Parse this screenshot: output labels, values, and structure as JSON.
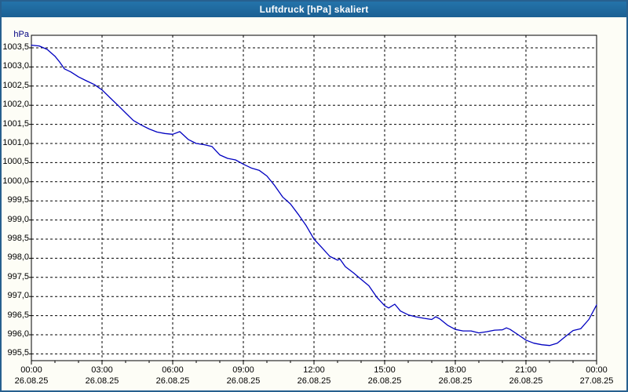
{
  "window": {
    "title": "Luftdruck [hPa] skaliert",
    "colors": {
      "titlebar": "#1d6394",
      "titlebar_text": "#ffffff",
      "frame": "#27608f",
      "background": "#fdfdf6",
      "plot_background": "#ffffff",
      "plot_border": "#000000",
      "gridline": "#000000",
      "line": "#0000c0",
      "axis_text": "#000000",
      "unit_text": "#000080"
    }
  },
  "chart_data": {
    "type": "line",
    "title": "Luftdruck [hPa] skaliert",
    "xlabel": "",
    "ylabel": "hPa",
    "grid": "dashed",
    "legend": "none",
    "ylim": [
      995.3,
      1003.83
    ],
    "xlim_hours": [
      0,
      24
    ],
    "y_ticks": [
      {
        "value": 1003.5,
        "label": "1003,5"
      },
      {
        "value": 1003.0,
        "label": "1003,0"
      },
      {
        "value": 1002.5,
        "label": "1002,5"
      },
      {
        "value": 1002.0,
        "label": "1002,0"
      },
      {
        "value": 1001.5,
        "label": "1001,5"
      },
      {
        "value": 1001.0,
        "label": "1001,0"
      },
      {
        "value": 1000.5,
        "label": "1000,5"
      },
      {
        "value": 1000.0,
        "label": "1000,0"
      },
      {
        "value": 999.5,
        "label": "999,5"
      },
      {
        "value": 999.0,
        "label": "999,0"
      },
      {
        "value": 998.5,
        "label": "998,5"
      },
      {
        "value": 998.0,
        "label": "998,0"
      },
      {
        "value": 997.5,
        "label": "997,5"
      },
      {
        "value": 997.0,
        "label": "997,0"
      },
      {
        "value": 996.5,
        "label": "996,5"
      },
      {
        "value": 996.0,
        "label": "996,0"
      },
      {
        "value": 995.5,
        "label": "995,5"
      }
    ],
    "x_major_ticks": [
      {
        "hour": 0,
        "time": "00:00",
        "date": "26.08.25"
      },
      {
        "hour": 3,
        "time": "03:00",
        "date": "26.08.25"
      },
      {
        "hour": 6,
        "time": "06:00",
        "date": "26.08.25"
      },
      {
        "hour": 9,
        "time": "09:00",
        "date": "26.08.25"
      },
      {
        "hour": 12,
        "time": "12:00",
        "date": "26.08.25"
      },
      {
        "hour": 15,
        "time": "15:00",
        "date": "26.08.25"
      },
      {
        "hour": 18,
        "time": "18:00",
        "date": "26.08.25"
      },
      {
        "hour": 21,
        "time": "21:00",
        "date": "26.08.25"
      },
      {
        "hour": 24,
        "time": "00:00",
        "date": "27.08.25"
      }
    ],
    "x_minor_tick_every_hours": 1,
    "series": [
      {
        "name": "Luftdruck",
        "unit": "hPa",
        "color": "#0000c0",
        "points": [
          [
            0,
            1003.57
          ],
          [
            0.33,
            1003.55
          ],
          [
            0.67,
            1003.46
          ],
          [
            1,
            1003.28
          ],
          [
            1.2,
            1003.13
          ],
          [
            1.4,
            1002.95
          ],
          [
            1.67,
            1002.87
          ],
          [
            2,
            1002.74
          ],
          [
            2.33,
            1002.64
          ],
          [
            2.67,
            1002.54
          ],
          [
            3,
            1002.4
          ],
          [
            3.33,
            1002.2
          ],
          [
            3.67,
            1002.0
          ],
          [
            4,
            1001.8
          ],
          [
            4.33,
            1001.6
          ],
          [
            4.67,
            1001.48
          ],
          [
            5,
            1001.38
          ],
          [
            5.33,
            1001.3
          ],
          [
            5.67,
            1001.26
          ],
          [
            6,
            1001.24
          ],
          [
            6.3,
            1001.31
          ],
          [
            6.67,
            1001.1
          ],
          [
            7,
            1001.0
          ],
          [
            7.33,
            1000.97
          ],
          [
            7.67,
            1000.92
          ],
          [
            8,
            1000.7
          ],
          [
            8.33,
            1000.61
          ],
          [
            8.67,
            1000.57
          ],
          [
            9,
            1000.46
          ],
          [
            9.33,
            1000.36
          ],
          [
            9.67,
            1000.3
          ],
          [
            10,
            1000.15
          ],
          [
            10.33,
            999.9
          ],
          [
            10.67,
            999.6
          ],
          [
            11,
            999.42
          ],
          [
            11.33,
            999.15
          ],
          [
            11.67,
            998.85
          ],
          [
            12,
            998.5
          ],
          [
            12.33,
            998.28
          ],
          [
            12.67,
            998.05
          ],
          [
            13,
            997.95
          ],
          [
            13.1,
            997.98
          ],
          [
            13.33,
            997.78
          ],
          [
            13.67,
            997.62
          ],
          [
            14,
            997.45
          ],
          [
            14.33,
            997.28
          ],
          [
            14.67,
            996.98
          ],
          [
            15,
            996.76
          ],
          [
            15.17,
            996.7
          ],
          [
            15.43,
            996.8
          ],
          [
            15.67,
            996.62
          ],
          [
            16,
            996.52
          ],
          [
            16.33,
            996.47
          ],
          [
            16.67,
            996.43
          ],
          [
            17,
            996.4
          ],
          [
            17.17,
            996.47
          ],
          [
            17.33,
            996.42
          ],
          [
            17.67,
            996.25
          ],
          [
            18,
            996.14
          ],
          [
            18.33,
            996.1
          ],
          [
            18.67,
            996.1
          ],
          [
            19,
            996.05
          ],
          [
            19.33,
            996.08
          ],
          [
            19.67,
            996.12
          ],
          [
            20,
            996.13
          ],
          [
            20.17,
            996.18
          ],
          [
            20.33,
            996.14
          ],
          [
            20.67,
            996.0
          ],
          [
            21,
            995.86
          ],
          [
            21.33,
            995.78
          ],
          [
            21.67,
            995.74
          ],
          [
            22,
            995.72
          ],
          [
            22.33,
            995.78
          ],
          [
            22.67,
            995.95
          ],
          [
            23,
            996.11
          ],
          [
            23.33,
            996.16
          ],
          [
            23.67,
            996.4
          ],
          [
            24,
            996.78
          ]
        ]
      }
    ]
  }
}
